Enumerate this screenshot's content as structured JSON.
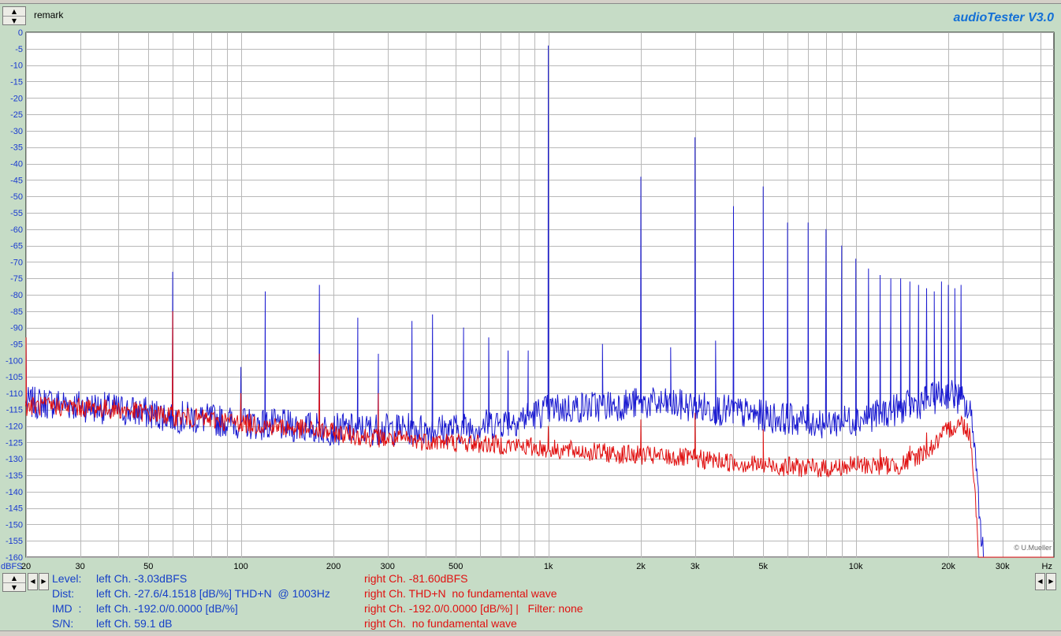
{
  "toolbar": {
    "remark_label": "remark",
    "brand": "audioTester  V3.0",
    "spin_up": "▲",
    "spin_down": "▼",
    "arrow_left": "◀",
    "arrow_right": "▶"
  },
  "chart_data": {
    "type": "line",
    "title": "",
    "xlabel": "Hz",
    "ylabel": "dBFS",
    "x_scale": "log",
    "xlim": [
      20,
      44100
    ],
    "ylim": [
      -160,
      0
    ],
    "grid": true,
    "y_ticks": [
      0,
      -5,
      -10,
      -15,
      -20,
      -25,
      -30,
      -35,
      -40,
      -45,
      -50,
      -55,
      -60,
      -65,
      -70,
      -75,
      -80,
      -85,
      -90,
      -95,
      -100,
      -105,
      -110,
      -115,
      -120,
      -125,
      -130,
      -135,
      -140,
      -145,
      -150,
      -155,
      -160
    ],
    "x_ticks": [
      {
        "value": 20,
        "label": "20"
      },
      {
        "value": 30,
        "label": "30"
      },
      {
        "value": 50,
        "label": "50"
      },
      {
        "value": 100,
        "label": "100"
      },
      {
        "value": 200,
        "label": "200"
      },
      {
        "value": 300,
        "label": "300"
      },
      {
        "value": 500,
        "label": "500"
      },
      {
        "value": 1000,
        "label": "1k"
      },
      {
        "value": 2000,
        "label": "2k"
      },
      {
        "value": 3000,
        "label": "3k"
      },
      {
        "value": 5000,
        "label": "5k"
      },
      {
        "value": 10000,
        "label": "10k"
      },
      {
        "value": 20000,
        "label": "20k"
      },
      {
        "value": 30000,
        "label": "30k"
      }
    ],
    "watermark": "© U.Mueller",
    "colors": {
      "left": "#1a1ad0",
      "right": "#e01010",
      "grid": "#b8b8b8",
      "background": "#ffffff"
    },
    "series": [
      {
        "key": "left",
        "floor": [
          [
            20,
            -113
          ],
          [
            25,
            -113
          ],
          [
            40,
            -115
          ],
          [
            60,
            -117
          ],
          [
            100,
            -119
          ],
          [
            200,
            -121
          ],
          [
            300,
            -121
          ],
          [
            500,
            -121
          ],
          [
            800,
            -118
          ],
          [
            1000,
            -115
          ],
          [
            2000,
            -113
          ],
          [
            3000,
            -114
          ],
          [
            5000,
            -117
          ],
          [
            8000,
            -119
          ],
          [
            10000,
            -118
          ],
          [
            15000,
            -114
          ],
          [
            20000,
            -110
          ],
          [
            22000,
            -112
          ],
          [
            24000,
            -118
          ],
          [
            25000,
            -140
          ],
          [
            26000,
            -160
          ]
        ],
        "peaks": [
          [
            20,
            -95
          ],
          [
            60,
            -73
          ],
          [
            100,
            -102
          ],
          [
            120,
            -79
          ],
          [
            180,
            -77
          ],
          [
            240,
            -87
          ],
          [
            280,
            -98
          ],
          [
            360,
            -88
          ],
          [
            420,
            -86
          ],
          [
            530,
            -90
          ],
          [
            640,
            -93
          ],
          [
            740,
            -97
          ],
          [
            860,
            -97
          ],
          [
            1000,
            -4
          ],
          [
            1500,
            -95
          ],
          [
            2000,
            -44
          ],
          [
            2500,
            -96
          ],
          [
            3000,
            -32
          ],
          [
            3500,
            -94
          ],
          [
            4000,
            -53
          ],
          [
            5000,
            -47
          ],
          [
            6000,
            -58
          ],
          [
            7000,
            -58
          ],
          [
            8000,
            -60
          ],
          [
            9000,
            -65
          ],
          [
            10000,
            -69
          ],
          [
            11000,
            -72
          ],
          [
            12000,
            -74
          ],
          [
            13000,
            -75
          ],
          [
            14000,
            -75
          ],
          [
            15000,
            -76
          ],
          [
            16000,
            -77
          ],
          [
            17000,
            -78
          ],
          [
            18000,
            -79
          ],
          [
            19000,
            -76
          ],
          [
            20000,
            -77
          ],
          [
            21000,
            -78
          ],
          [
            22000,
            -77
          ]
        ]
      },
      {
        "key": "right",
        "floor": [
          [
            20,
            -114
          ],
          [
            25,
            -114
          ],
          [
            40,
            -115
          ],
          [
            60,
            -117
          ],
          [
            100,
            -119
          ],
          [
            200,
            -122
          ],
          [
            300,
            -124
          ],
          [
            500,
            -125
          ],
          [
            800,
            -126
          ],
          [
            1000,
            -127
          ],
          [
            2000,
            -129
          ],
          [
            3000,
            -130
          ],
          [
            5000,
            -132
          ],
          [
            8000,
            -133
          ],
          [
            10000,
            -132
          ],
          [
            14000,
            -132
          ],
          [
            16000,
            -129
          ],
          [
            18000,
            -126
          ],
          [
            20000,
            -121
          ],
          [
            22000,
            -119
          ],
          [
            23500,
            -122
          ],
          [
            24500,
            -140
          ],
          [
            25000,
            -160
          ],
          [
            44100,
            -160
          ]
        ],
        "peaks": [
          [
            20,
            -93
          ],
          [
            60,
            -85
          ],
          [
            100,
            -110
          ],
          [
            180,
            -98
          ],
          [
            280,
            -110
          ],
          [
            1000,
            -120
          ],
          [
            2000,
            -118
          ],
          [
            3000,
            -116
          ],
          [
            5000,
            -121
          ],
          [
            12000,
            -127
          ],
          [
            15000,
            -126
          ],
          [
            17000,
            -122
          ],
          [
            19000,
            -123
          ],
          [
            20000,
            -119
          ]
        ]
      }
    ]
  },
  "readout": {
    "labels": [
      "Level:",
      "Dist:",
      "IMD  :",
      "S/N:"
    ],
    "left_ch": [
      "left Ch. -3.03dBFS",
      "left Ch. -27.6/4.1518 [dB/%] THD+N  @ 1003Hz",
      "left Ch. -192.0/0.0000 [dB/%]",
      "left Ch. 59.1 dB"
    ],
    "right_ch": [
      "right Ch. -81.60dBFS",
      "right Ch. THD+N  no fundamental wave",
      "right Ch. -192.0/0.0000 [dB/%] |   Filter: none",
      "right Ch.  no fundamental wave"
    ]
  }
}
